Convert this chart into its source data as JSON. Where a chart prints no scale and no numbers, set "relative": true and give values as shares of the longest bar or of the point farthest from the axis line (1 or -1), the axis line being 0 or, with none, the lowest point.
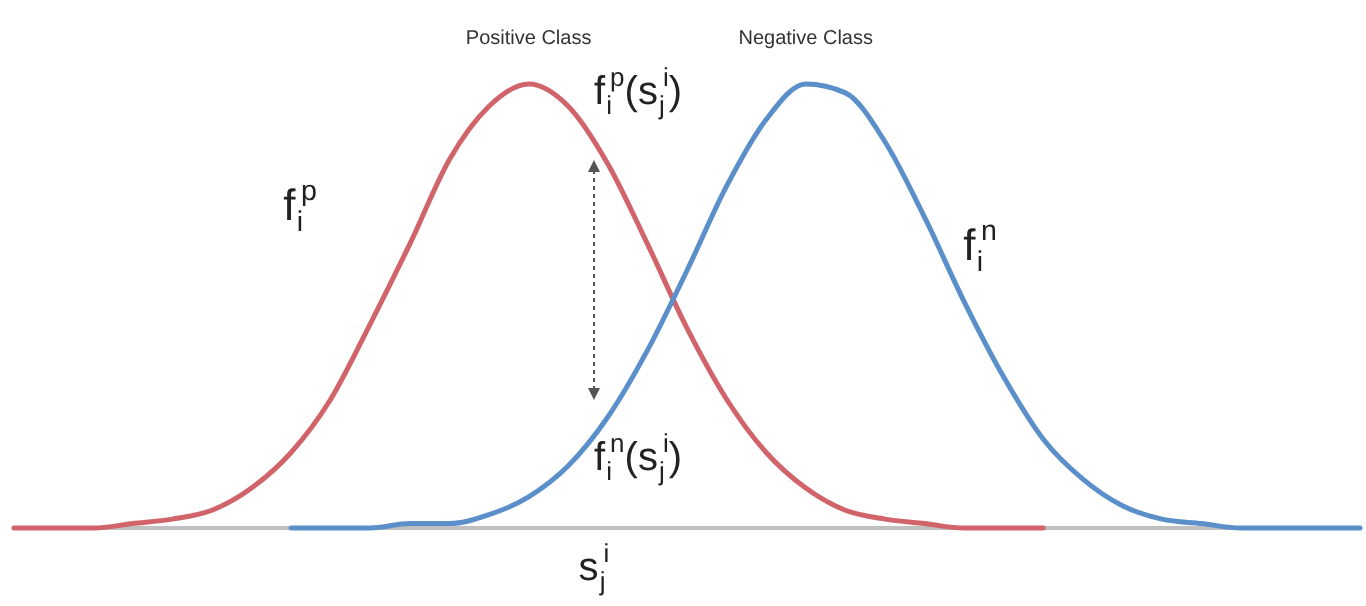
{
  "chart_data": {
    "type": "line",
    "relative": true,
    "legend": false,
    "line_style": "solid",
    "categories": [
      null,
      null,
      null,
      null,
      null,
      null,
      null,
      null,
      null,
      null,
      null,
      null,
      null,
      null,
      null,
      null,
      null,
      null,
      null,
      null,
      null,
      null,
      null,
      null,
      null,
      null,
      null,
      null,
      null,
      null,
      null,
      null,
      null,
      null,
      null
    ],
    "series": [
      {
        "name": "Positive Class",
        "color": "#d0646a",
        "values": [
          0,
          0,
          0,
          0.01,
          0.02,
          0.04,
          0.09,
          0.17,
          0.29,
          0.46,
          0.64,
          0.83,
          0.95,
          1,
          0.95,
          0.82,
          0.64,
          0.45,
          0.29,
          0.17,
          0.09,
          0.04,
          0.02,
          0.01,
          0,
          0,
          0,
          null,
          null,
          null,
          null,
          null,
          null,
          null,
          null
        ]
      },
      {
        "name": "Negative Class",
        "color": "#5b8fc9",
        "values": [
          null,
          null,
          null,
          null,
          null,
          null,
          null,
          0,
          0,
          0,
          0.01,
          0.01,
          0.03,
          0.07,
          0.14,
          0.25,
          0.4,
          0.58,
          0.77,
          0.92,
          1,
          0.98,
          0.87,
          0.7,
          0.51,
          0.34,
          0.2,
          0.11,
          0.05,
          0.02,
          0.01,
          0,
          0,
          0,
          0
        ]
      }
    ],
    "annotations": [
      "f$_{i}$$^{p}$",
      "f$_{i}$$^{p}$(s$_{j}$$^{i}$)",
      "f$_{i}$$^{n}$(s$_{j}$$^{i}$)",
      "f$_{i}$$^{n}$",
      "s$_{j}$$^{i}$"
    ]
  }
}
